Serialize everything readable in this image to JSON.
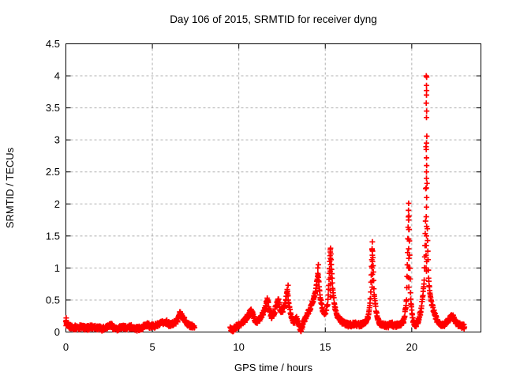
{
  "chart_data": {
    "type": "scatter",
    "title": "Day 106 of 2015, SRMTID for receiver dyng",
    "xlabel": "GPS time / hours",
    "ylabel": "SRMTID / TECUs",
    "marker": "plus",
    "grid": true,
    "legend": "none",
    "xlim": [
      0,
      24
    ],
    "ylim": [
      0,
      4.5
    ],
    "xticks": [
      0,
      5,
      10,
      15,
      20
    ],
    "xtick_labels": [
      "0",
      "5",
      "10",
      "15",
      "20"
    ],
    "yticks": [
      0,
      0.5,
      1,
      1.5,
      2,
      2.5,
      3,
      3.5,
      4,
      4.5
    ],
    "ytick_labels": [
      "0",
      "0.5",
      "1",
      "1.5",
      "2",
      "2.5",
      "3",
      "3.5",
      "4",
      "4.5"
    ],
    "colors": {
      "points": "#ff0000",
      "grid": "#b0b0b0",
      "axis": "#000000",
      "text": "#000000",
      "background": "#ffffff"
    },
    "sample_step_hours": 0.015,
    "jitter_tecus": 0.035,
    "segments": [
      {
        "name": "morning-quiet-band",
        "profile": [
          [
            0.0,
            0.14
          ],
          [
            0.05,
            0.1
          ],
          [
            0.3,
            0.08
          ],
          [
            0.6,
            0.07
          ],
          [
            0.9,
            0.08
          ],
          [
            1.2,
            0.06
          ],
          [
            1.5,
            0.08
          ],
          [
            1.8,
            0.07
          ],
          [
            2.1,
            0.05
          ],
          [
            2.4,
            0.09
          ],
          [
            2.6,
            0.12
          ],
          [
            2.8,
            0.05
          ],
          [
            3.0,
            0.04
          ],
          [
            3.2,
            0.08
          ],
          [
            3.5,
            0.07
          ],
          [
            3.8,
            0.08
          ],
          [
            4.1,
            0.05
          ],
          [
            4.4,
            0.06
          ],
          [
            4.6,
            0.12
          ],
          [
            4.9,
            0.09
          ],
          [
            5.2,
            0.1
          ],
          [
            5.5,
            0.13
          ],
          [
            5.8,
            0.16
          ],
          [
            6.0,
            0.11
          ],
          [
            6.2,
            0.13
          ],
          [
            6.45,
            0.18
          ],
          [
            6.6,
            0.3
          ],
          [
            6.7,
            0.25
          ],
          [
            6.85,
            0.2
          ],
          [
            7.0,
            0.13
          ],
          [
            7.2,
            0.1
          ],
          [
            7.45,
            0.08
          ]
        ]
      },
      {
        "name": "afternoon-evening-active",
        "profile": [
          [
            9.5,
            0.05
          ],
          [
            9.65,
            0.03
          ],
          [
            9.85,
            0.08
          ],
          [
            10.1,
            0.12
          ],
          [
            10.35,
            0.18
          ],
          [
            10.55,
            0.26
          ],
          [
            10.7,
            0.34
          ],
          [
            10.85,
            0.25
          ],
          [
            11.0,
            0.16
          ],
          [
            11.2,
            0.2
          ],
          [
            11.4,
            0.3
          ],
          [
            11.55,
            0.4
          ],
          [
            11.65,
            0.53
          ],
          [
            11.75,
            0.35
          ],
          [
            11.9,
            0.24
          ],
          [
            12.05,
            0.3
          ],
          [
            12.2,
            0.45
          ],
          [
            12.3,
            0.5
          ],
          [
            12.4,
            0.32
          ],
          [
            12.55,
            0.35
          ],
          [
            12.7,
            0.45
          ],
          [
            12.8,
            0.68
          ],
          [
            12.9,
            0.4
          ],
          [
            13.05,
            0.22
          ],
          [
            13.2,
            0.15
          ],
          [
            13.35,
            0.22
          ],
          [
            13.5,
            0.08
          ],
          [
            13.6,
            0.03
          ],
          [
            13.75,
            0.15
          ],
          [
            13.9,
            0.25
          ],
          [
            14.1,
            0.35
          ],
          [
            14.3,
            0.5
          ],
          [
            14.45,
            0.65
          ],
          [
            14.58,
            0.92
          ],
          [
            14.7,
            0.55
          ],
          [
            14.85,
            0.35
          ],
          [
            15.0,
            0.28
          ],
          [
            15.15,
            0.45
          ],
          [
            15.3,
            1.33
          ],
          [
            15.42,
            0.7
          ],
          [
            15.55,
            0.4
          ],
          [
            15.7,
            0.25
          ],
          [
            15.9,
            0.18
          ],
          [
            16.1,
            0.13
          ],
          [
            16.4,
            0.11
          ],
          [
            16.7,
            0.13
          ],
          [
            17.0,
            0.11
          ],
          [
            17.3,
            0.14
          ],
          [
            17.5,
            0.25
          ],
          [
            17.62,
            0.55
          ],
          [
            17.72,
            1.4
          ],
          [
            17.82,
            0.6
          ],
          [
            17.95,
            0.3
          ],
          [
            18.1,
            0.15
          ],
          [
            18.35,
            0.11
          ],
          [
            18.6,
            0.1
          ],
          [
            18.85,
            0.12
          ],
          [
            19.1,
            0.1
          ],
          [
            19.35,
            0.12
          ],
          [
            19.55,
            0.18
          ],
          [
            19.7,
            0.5
          ],
          [
            19.82,
            2.0
          ],
          [
            19.93,
            0.55
          ],
          [
            20.05,
            0.2
          ],
          [
            20.2,
            0.1
          ],
          [
            20.35,
            0.15
          ],
          [
            20.5,
            0.3
          ],
          [
            20.62,
            0.5
          ],
          [
            20.72,
            0.8
          ],
          [
            20.8,
            1.8
          ],
          [
            20.85,
            4.0
          ],
          [
            20.9,
            1.6
          ],
          [
            20.97,
            0.85
          ],
          [
            21.05,
            0.6
          ],
          [
            21.15,
            0.45
          ],
          [
            21.3,
            0.3
          ],
          [
            21.45,
            0.18
          ],
          [
            21.6,
            0.13
          ],
          [
            21.8,
            0.11
          ],
          [
            22.0,
            0.14
          ],
          [
            22.2,
            0.22
          ],
          [
            22.35,
            0.26
          ],
          [
            22.5,
            0.17
          ],
          [
            22.65,
            0.12
          ],
          [
            22.85,
            0.1
          ],
          [
            23.05,
            0.08
          ]
        ]
      }
    ],
    "extra_points": [
      [
        0.02,
        0.22
      ],
      [
        0.02,
        0.18
      ],
      [
        0.03,
        0.15
      ],
      [
        14.57,
        1.0
      ],
      [
        14.6,
        1.05
      ],
      [
        12.85,
        0.73
      ],
      [
        15.29,
        1.25
      ],
      [
        15.3,
        1.15
      ],
      [
        15.31,
        1.05
      ],
      [
        15.29,
        0.95
      ],
      [
        15.3,
        0.85
      ],
      [
        15.31,
        0.75
      ],
      [
        15.29,
        0.65
      ],
      [
        15.3,
        0.55
      ],
      [
        17.71,
        1.3
      ],
      [
        17.72,
        1.2
      ],
      [
        17.73,
        1.1
      ],
      [
        17.71,
        1.0
      ],
      [
        17.72,
        0.9
      ],
      [
        17.73,
        0.8
      ],
      [
        17.71,
        0.7
      ],
      [
        19.81,
        1.9
      ],
      [
        19.82,
        1.75
      ],
      [
        19.83,
        1.6
      ],
      [
        19.81,
        1.45
      ],
      [
        19.82,
        1.3
      ],
      [
        19.83,
        1.15
      ],
      [
        19.82,
        1.0
      ],
      [
        19.81,
        0.85
      ],
      [
        19.83,
        0.7
      ],
      [
        20.84,
        4.0
      ],
      [
        20.86,
        3.98
      ],
      [
        20.85,
        3.85
      ],
      [
        20.85,
        3.7
      ],
      [
        20.86,
        3.45
      ],
      [
        20.85,
        3.35
      ],
      [
        20.85,
        2.95
      ],
      [
        20.84,
        2.85
      ],
      [
        20.85,
        2.72
      ],
      [
        20.86,
        2.6
      ],
      [
        20.85,
        2.5
      ],
      [
        20.85,
        2.4
      ],
      [
        20.84,
        2.25
      ],
      [
        20.86,
        2.1
      ],
      [
        20.83,
        1.2
      ],
      [
        20.84,
        1.35
      ],
      [
        20.85,
        1.5
      ],
      [
        20.86,
        1.65
      ],
      [
        20.84,
        1.8
      ],
      [
        20.85,
        1.95
      ],
      [
        20.86,
        1.1
      ],
      [
        20.83,
        1.0
      ],
      [
        20.85,
        0.95
      ]
    ]
  }
}
